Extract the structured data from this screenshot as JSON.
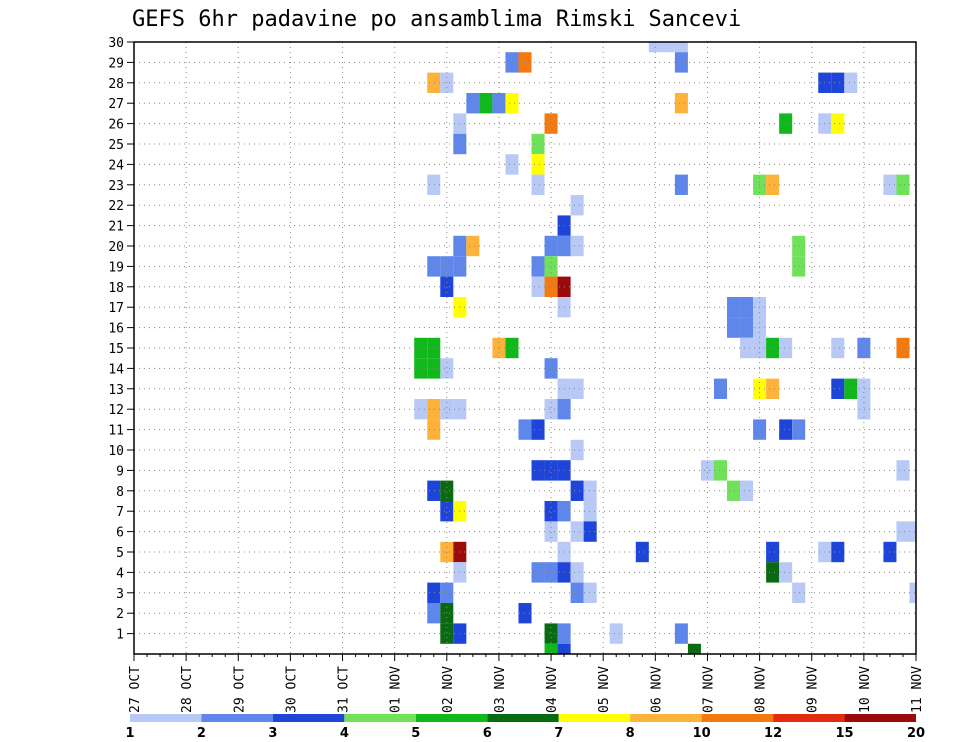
{
  "chart_data": {
    "type": "heatmap",
    "title": "GEFS 6hr padavine po ansamblima Rimski Sancevi",
    "xlabel": "",
    "ylabel": "",
    "x_tick_labels": [
      "27 OCT",
      "28 OCT",
      "29 OCT",
      "30 OCT",
      "31 OCT",
      "01 NOV",
      "02 NOV",
      "03 NOV",
      "04 NOV",
      "05 NOV",
      "06 NOV",
      "07 NOV",
      "08 NOV",
      "09 NOV",
      "10 NOV",
      "11 NOV"
    ],
    "y_tick_labels": [
      "1",
      "2",
      "3",
      "4",
      "5",
      "6",
      "7",
      "8",
      "9",
      "10",
      "11",
      "12",
      "13",
      "14",
      "15",
      "16",
      "17",
      "18",
      "19",
      "20",
      "21",
      "22",
      "23",
      "24",
      "25",
      "26",
      "27",
      "28",
      "29",
      "30"
    ],
    "x_unit": "6-hour step from 27 OCT 00",
    "xlim": [
      0,
      60
    ],
    "ylim": [
      0,
      30
    ],
    "grid": true,
    "legend": {
      "position": "bottom",
      "labels": [
        "1",
        "2",
        "3",
        "4",
        "5",
        "6",
        "7",
        "8",
        "10",
        "12",
        "15",
        "20"
      ],
      "colors": [
        "#b8c9f5",
        "#5f86ea",
        "#1f45d8",
        "#6fe25a",
        "#10b81c",
        "#0a6a12",
        "#ffff00",
        "#ffb23a",
        "#f27a10",
        "#e32b10",
        "#9c0b0b"
      ]
    },
    "cells": [
      [
        40,
        30,
        1
      ],
      [
        41,
        30,
        1
      ],
      [
        42,
        30,
        1
      ],
      [
        29,
        29,
        2
      ],
      [
        30,
        29,
        10
      ],
      [
        42,
        29,
        2
      ],
      [
        23,
        28,
        8
      ],
      [
        24,
        28,
        1
      ],
      [
        53,
        28,
        3
      ],
      [
        54,
        28,
        3
      ],
      [
        55,
        28,
        1
      ],
      [
        26,
        27,
        2
      ],
      [
        27,
        27,
        5
      ],
      [
        28,
        27,
        2
      ],
      [
        29,
        27,
        7
      ],
      [
        42,
        27,
        8
      ],
      [
        25,
        26,
        1
      ],
      [
        32,
        26,
        10
      ],
      [
        50,
        26,
        5
      ],
      [
        53,
        26,
        1
      ],
      [
        54,
        26,
        7
      ],
      [
        25,
        25,
        2
      ],
      [
        31,
        25,
        4
      ],
      [
        29,
        24,
        1
      ],
      [
        31,
        24,
        7
      ],
      [
        23,
        23,
        1
      ],
      [
        31,
        23,
        1
      ],
      [
        42,
        23,
        2
      ],
      [
        48,
        23,
        4
      ],
      [
        49,
        23,
        8
      ],
      [
        58,
        23,
        1
      ],
      [
        59,
        23,
        4
      ],
      [
        34,
        22,
        1
      ],
      [
        33,
        21,
        3
      ],
      [
        25,
        20,
        2
      ],
      [
        26,
        20,
        8
      ],
      [
        32,
        20,
        2
      ],
      [
        33,
        20,
        2
      ],
      [
        34,
        20,
        1
      ],
      [
        51,
        20,
        4
      ],
      [
        23,
        19,
        2
      ],
      [
        24,
        19,
        2
      ],
      [
        25,
        19,
        2
      ],
      [
        31,
        19,
        2
      ],
      [
        32,
        19,
        4
      ],
      [
        51,
        19,
        4
      ],
      [
        24,
        18,
        3
      ],
      [
        31,
        18,
        1
      ],
      [
        32,
        18,
        10
      ],
      [
        33,
        18,
        15
      ],
      [
        25,
        17,
        7
      ],
      [
        33,
        17,
        1
      ],
      [
        46,
        17,
        2
      ],
      [
        47,
        17,
        2
      ],
      [
        48,
        17,
        1
      ],
      [
        46,
        16,
        2
      ],
      [
        47,
        16,
        2
      ],
      [
        48,
        16,
        1
      ],
      [
        47,
        15,
        1
      ],
      [
        48,
        15,
        1
      ],
      [
        49,
        15,
        5
      ],
      [
        50,
        15,
        1
      ],
      [
        54,
        15,
        1
      ],
      [
        56,
        15,
        2
      ],
      [
        59,
        15,
        10
      ],
      [
        22,
        15,
        5
      ],
      [
        23,
        15,
        5
      ],
      [
        24,
        14,
        1
      ],
      [
        28,
        15,
        8
      ],
      [
        29,
        15,
        5
      ],
      [
        22,
        14,
        5
      ],
      [
        23,
        14,
        5
      ],
      [
        32,
        14,
        2
      ],
      [
        33,
        13,
        1
      ],
      [
        34,
        13,
        1
      ],
      [
        45,
        13,
        2
      ],
      [
        48,
        13,
        7
      ],
      [
        49,
        13,
        8
      ],
      [
        54,
        13,
        3
      ],
      [
        55,
        13,
        5
      ],
      [
        56,
        13,
        1
      ],
      [
        22,
        12,
        1
      ],
      [
        23,
        12,
        8
      ],
      [
        24,
        12,
        1
      ],
      [
        25,
        12,
        1
      ],
      [
        32,
        12,
        1
      ],
      [
        33,
        12,
        2
      ],
      [
        56,
        12,
        1
      ],
      [
        23,
        11,
        8
      ],
      [
        30,
        11,
        2
      ],
      [
        31,
        11,
        3
      ],
      [
        48,
        11,
        2
      ],
      [
        50,
        11,
        3
      ],
      [
        51,
        11,
        2
      ],
      [
        34,
        10,
        1
      ],
      [
        31,
        9,
        3
      ],
      [
        32,
        9,
        3
      ],
      [
        33,
        9,
        3
      ],
      [
        44,
        9,
        1
      ],
      [
        45,
        9,
        4
      ],
      [
        59,
        9,
        1
      ],
      [
        23,
        8,
        3
      ],
      [
        24,
        8,
        6
      ],
      [
        34,
        8,
        3
      ],
      [
        35,
        8,
        1
      ],
      [
        46,
        8,
        4
      ],
      [
        47,
        8,
        1
      ],
      [
        24,
        7,
        3
      ],
      [
        25,
        7,
        7
      ],
      [
        32,
        7,
        3
      ],
      [
        33,
        7,
        2
      ],
      [
        35,
        7,
        1
      ],
      [
        32,
        6,
        1
      ],
      [
        34,
        6,
        1
      ],
      [
        35,
        6,
        3
      ],
      [
        59,
        6,
        1
      ],
      [
        60,
        6,
        1
      ],
      [
        24,
        5,
        8
      ],
      [
        25,
        5,
        15
      ],
      [
        33,
        5,
        1
      ],
      [
        39,
        5,
        3
      ],
      [
        49,
        5,
        3
      ],
      [
        53,
        5,
        1
      ],
      [
        54,
        5,
        3
      ],
      [
        58,
        5,
        3
      ],
      [
        25,
        4,
        1
      ],
      [
        31,
        4,
        2
      ],
      [
        32,
        4,
        2
      ],
      [
        33,
        4,
        3
      ],
      [
        34,
        4,
        1
      ],
      [
        49,
        4,
        6
      ],
      [
        50,
        4,
        1
      ],
      [
        23,
        3,
        3
      ],
      [
        24,
        3,
        2
      ],
      [
        34,
        3,
        2
      ],
      [
        35,
        3,
        1
      ],
      [
        51,
        3,
        1
      ],
      [
        60,
        3,
        1
      ],
      [
        23,
        2,
        2
      ],
      [
        24,
        2,
        6
      ],
      [
        30,
        2,
        3
      ],
      [
        24,
        1,
        6
      ],
      [
        25,
        1,
        3
      ],
      [
        32,
        1,
        6
      ],
      [
        33,
        1,
        2
      ],
      [
        37,
        1,
        1
      ],
      [
        42,
        1,
        2
      ],
      [
        32,
        0,
        5
      ],
      [
        33,
        0,
        3
      ],
      [
        43,
        0,
        6
      ]
    ]
  }
}
